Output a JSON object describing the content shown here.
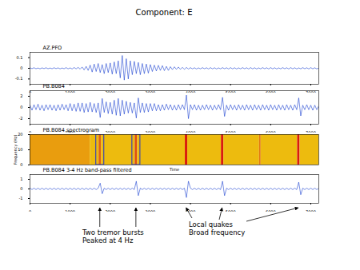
{
  "title": "Component: E",
  "chart_data": [
    {
      "type": "line",
      "title": "AZ.PFO",
      "color": "#1a3fd0",
      "xlim": [
        0,
        7200
      ],
      "xticks": [
        0,
        1000,
        2000,
        3000,
        4000,
        5000,
        6000,
        7000
      ],
      "ylim": [
        -0.15,
        0.15
      ],
      "yticks": [
        -0.1,
        0,
        0.1
      ],
      "x": [
        0,
        50,
        100,
        150,
        200,
        250,
        300,
        350,
        400,
        450,
        500,
        550,
        600,
        650,
        700,
        750,
        800,
        850,
        900,
        950,
        1000,
        1050,
        1100,
        1150,
        1200,
        1250,
        1300,
        1350,
        1400,
        1450,
        1500,
        1550,
        1600,
        1650,
        1700,
        1750,
        1800,
        1850,
        1900,
        1950,
        2000,
        2050,
        2100,
        2150,
        2200,
        2250,
        2300,
        2350,
        2400,
        2450,
        2500,
        2550,
        2600,
        2650,
        2700,
        2750,
        2800,
        2850,
        2900,
        2950,
        3000,
        3050,
        3100,
        3150,
        3200,
        3250,
        3300,
        3350,
        3400,
        3450,
        3500,
        3550,
        3600,
        3650,
        3700,
        3750,
        3800,
        3850,
        3900,
        3950,
        4000,
        4050,
        4100,
        4150,
        4200,
        4250,
        4300,
        4350,
        4400,
        4450,
        4500,
        4550,
        4600,
        4650,
        4700,
        4750,
        4800,
        4850,
        4900,
        4950,
        5000,
        5050,
        5100,
        5150,
        5200,
        5250,
        5300,
        5350,
        5400,
        5450,
        5500,
        5550,
        5600,
        5650,
        5700,
        5750,
        5800,
        5850,
        5900,
        5950,
        6000,
        6050,
        6100,
        6150,
        6200,
        6250,
        6300,
        6350,
        6400,
        6450,
        6500,
        6550,
        6600,
        6650,
        6700,
        6750,
        6800,
        6850,
        6900,
        6950,
        7000,
        7050,
        7100,
        7150,
        7200
      ],
      "values": [
        0.004,
        -0.003,
        0.005,
        -0.004,
        0.003,
        -0.005,
        0.004,
        -0.003,
        0.005,
        -0.004,
        0.003,
        -0.004,
        0.005,
        -0.003,
        0.004,
        -0.005,
        0.003,
        -0.004,
        0.006,
        -0.005,
        0.004,
        -0.006,
        0.007,
        -0.005,
        0.008,
        -0.007,
        0.012,
        -0.015,
        0.018,
        -0.02,
        0.03,
        -0.035,
        0.04,
        -0.03,
        0.045,
        -0.04,
        0.035,
        -0.05,
        0.045,
        -0.04,
        0.05,
        -0.055,
        0.06,
        -0.05,
        0.07,
        -0.09,
        0.12,
        -0.11,
        0.09,
        -0.1,
        0.07,
        -0.06,
        0.065,
        -0.05,
        0.055,
        -0.06,
        0.045,
        -0.05,
        0.04,
        -0.045,
        0.035,
        -0.03,
        0.03,
        -0.025,
        0.028,
        -0.02,
        0.025,
        -0.022,
        0.018,
        -0.02,
        0.015,
        -0.012,
        0.014,
        -0.01,
        0.012,
        -0.01,
        0.009,
        -0.01,
        0.008,
        -0.007,
        0.006,
        -0.005,
        0.005,
        -0.006,
        0.004,
        -0.005,
        0.006,
        -0.004,
        0.005,
        -0.006,
        0.006,
        -0.005,
        0.005,
        -0.006,
        0.004,
        -0.005,
        0.006,
        -0.004,
        0.005,
        -0.006,
        0.006,
        -0.005,
        0.005,
        -0.006,
        0.004,
        -0.005,
        0.006,
        -0.004,
        0.005,
        -0.006,
        0.006,
        -0.005,
        0.005,
        -0.006,
        0.004,
        -0.005,
        0.006,
        -0.004,
        0.005,
        -0.006,
        0.006,
        -0.005,
        0.005,
        -0.006,
        0.004,
        -0.005,
        0.006,
        -0.004,
        0.005,
        -0.006,
        0.006,
        -0.005,
        0.005,
        -0.006,
        0.004,
        -0.005,
        0.006,
        -0.004,
        0.005,
        -0.006,
        0.006,
        -0.005,
        0.005,
        -0.006,
        0.004
      ]
    },
    {
      "type": "line",
      "title": "PB.B084",
      "color": "#1a3fd0",
      "xlim": [
        0,
        7200
      ],
      "xticks": [
        0,
        1000,
        2000,
        3000,
        4000,
        5000,
        6000,
        7000
      ],
      "ylim": [
        -3,
        3
      ],
      "yticks": [
        -2,
        0,
        2
      ],
      "x": [
        0,
        50,
        100,
        150,
        200,
        250,
        300,
        350,
        400,
        450,
        500,
        550,
        600,
        650,
        700,
        750,
        800,
        850,
        900,
        950,
        1000,
        1050,
        1100,
        1150,
        1200,
        1250,
        1300,
        1350,
        1400,
        1450,
        1500,
        1550,
        1600,
        1650,
        1700,
        1750,
        1800,
        1850,
        1900,
        1950,
        2000,
        2050,
        2100,
        2150,
        2200,
        2250,
        2300,
        2350,
        2400,
        2450,
        2500,
        2550,
        2600,
        2650,
        2700,
        2750,
        2800,
        2850,
        2900,
        2950,
        3000,
        3050,
        3100,
        3150,
        3200,
        3250,
        3300,
        3350,
        3400,
        3450,
        3500,
        3550,
        3600,
        3650,
        3700,
        3750,
        3800,
        3850,
        3900,
        3950,
        4000,
        4050,
        4100,
        4150,
        4200,
        4250,
        4300,
        4350,
        4400,
        4450,
        4500,
        4550,
        4600,
        4650,
        4700,
        4750,
        4800,
        4850,
        4900,
        4950,
        5000,
        5050,
        5100,
        5150,
        5200,
        5250,
        5300,
        5350,
        5400,
        5450,
        5500,
        5550,
        5600,
        5650,
        5700,
        5750,
        5800,
        5850,
        5900,
        5950,
        6000,
        6050,
        6100,
        6150,
        6200,
        6250,
        6300,
        6350,
        6400,
        6450,
        6500,
        6550,
        6600,
        6650,
        6700,
        6750,
        6800,
        6850,
        6900,
        6950,
        7000,
        7050,
        7100,
        7150,
        7200
      ],
      "values": [
        0.4,
        -0.5,
        0.5,
        -0.4,
        0.6,
        -0.5,
        0.4,
        -0.6,
        0.5,
        -0.4,
        0.5,
        -0.5,
        0.4,
        -0.6,
        0.5,
        -0.5,
        0.6,
        -0.4,
        0.5,
        -0.6,
        0.7,
        -0.6,
        0.6,
        -0.7,
        0.8,
        -0.7,
        0.8,
        -0.9,
        0.7,
        -0.8,
        0.9,
        -0.8,
        0.7,
        -0.9,
        0.8,
        -1.8,
        1.6,
        -0.9,
        1.0,
        -1.1,
        0.9,
        -1.2,
        1.3,
        -1.4,
        1.6,
        -1.5,
        1.3,
        -1.2,
        1.1,
        -1.0,
        0.9,
        -1.0,
        0.8,
        -1.9,
        1.7,
        -0.9,
        0.8,
        -0.9,
        0.7,
        -0.8,
        0.7,
        -0.6,
        0.7,
        -0.6,
        0.5,
        -0.6,
        0.5,
        -0.5,
        0.6,
        -0.4,
        0.5,
        -0.5,
        0.4,
        -0.5,
        0.5,
        -0.4,
        0.5,
        -0.4,
        2.2,
        -2.0,
        0.5,
        -0.4,
        0.5,
        -0.5,
        0.4,
        -0.5,
        0.4,
        -0.4,
        0.5,
        -0.4,
        0.4,
        -0.5,
        0.4,
        -0.4,
        0.5,
        -0.4,
        1.8,
        -1.6,
        0.4,
        -0.5,
        0.5,
        -0.4,
        0.4,
        -0.5,
        0.5,
        -0.4,
        0.4,
        -0.5,
        0.5,
        -0.4,
        0.4,
        -0.5,
        0.5,
        -0.4,
        0.4,
        -0.5,
        0.5,
        -0.4,
        0.4,
        -0.5,
        0.5,
        -0.4,
        0.4,
        -0.5,
        0.5,
        -0.4,
        0.4,
        -0.5,
        0.5,
        -0.4,
        0.4,
        -0.5,
        0.5,
        -0.4,
        1.7,
        -1.5,
        0.4,
        -0.4,
        0.5,
        -0.4,
        0.4,
        -0.5,
        0.4,
        -0.4,
        0.3
      ]
    },
    {
      "type": "heatmap",
      "title": "PB.B084 spectrogram",
      "xlabel": "Time",
      "ylabel": "Frequency (Hz)",
      "tick_labels": "y",
      "xlim": [
        0,
        7200
      ],
      "ylim": [
        0,
        20
      ],
      "yticks": [
        0,
        10,
        20
      ],
      "bins": [
        0,
        1500,
        1720,
        1780,
        2620,
        2680,
        3870,
        3930,
        4770,
        4830,
        5720,
        5760,
        6670,
        6730,
        7200
      ],
      "values": [
        0.35,
        0.2,
        0.65,
        0.2,
        0.75,
        0.2,
        1,
        0.2,
        1,
        0.2,
        0.55,
        0.2,
        1,
        0.2
      ],
      "value_range": [
        0,
        1
      ],
      "boxes": [
        [
          1650,
          1850
        ],
        [
          2550,
          2750
        ]
      ]
    },
    {
      "type": "line",
      "title": "PB.B084 3-4 Hz band-pass filtered",
      "color": "#1a3fd0",
      "xlim": [
        0,
        7200
      ],
      "xticks": [
        0,
        1000,
        2000,
        3000,
        4000,
        5000,
        6000,
        7000
      ],
      "ylim": [
        -1.5,
        1.5
      ],
      "yticks": [
        -1,
        0,
        1
      ],
      "x": [
        0,
        50,
        100,
        150,
        200,
        250,
        300,
        350,
        400,
        450,
        500,
        550,
        600,
        650,
        700,
        750,
        800,
        850,
        900,
        950,
        1000,
        1050,
        1100,
        1150,
        1200,
        1250,
        1300,
        1350,
        1400,
        1450,
        1500,
        1550,
        1600,
        1650,
        1700,
        1750,
        1800,
        1850,
        1900,
        1950,
        2000,
        2050,
        2100,
        2150,
        2200,
        2250,
        2300,
        2350,
        2400,
        2450,
        2500,
        2550,
        2600,
        2650,
        2700,
        2750,
        2800,
        2850,
        2900,
        2950,
        3000,
        3050,
        3100,
        3150,
        3200,
        3250,
        3300,
        3350,
        3400,
        3450,
        3500,
        3550,
        3600,
        3650,
        3700,
        3750,
        3800,
        3850,
        3900,
        3950,
        4000,
        4050,
        4100,
        4150,
        4200,
        4250,
        4300,
        4350,
        4400,
        4450,
        4500,
        4550,
        4600,
        4650,
        4700,
        4750,
        4800,
        4850,
        4900,
        4950,
        5000,
        5050,
        5100,
        5150,
        5200,
        5250,
        5300,
        5350,
        5400,
        5450,
        5500,
        5550,
        5600,
        5650,
        5700,
        5750,
        5800,
        5850,
        5900,
        5950,
        6000,
        6050,
        6100,
        6150,
        6200,
        6250,
        6300,
        6350,
        6400,
        6450,
        6500,
        6550,
        6600,
        6650,
        6700,
        6750,
        6800,
        6850,
        6900,
        6950,
        7000,
        7050,
        7100,
        7150,
        7200
      ],
      "values": [
        0.08,
        -0.07,
        0.08,
        -0.07,
        0.08,
        -0.07,
        0.08,
        -0.07,
        0.08,
        -0.07,
        0.08,
        -0.07,
        0.08,
        -0.07,
        0.08,
        -0.07,
        0.08,
        -0.07,
        0.08,
        -0.07,
        0.08,
        -0.07,
        0.08,
        -0.07,
        0.08,
        -0.07,
        0.08,
        -0.07,
        0.08,
        -0.07,
        0.08,
        -0.07,
        0.08,
        -0.07,
        0.08,
        0.6,
        -0.5,
        0.08,
        -0.07,
        0.08,
        -0.07,
        0.08,
        -0.07,
        0.08,
        -0.07,
        0.08,
        -0.07,
        0.08,
        -0.07,
        0.08,
        -0.07,
        0.08,
        -0.07,
        0.8,
        -0.7,
        0.08,
        -0.07,
        0.08,
        -0.07,
        0.08,
        -0.07,
        0.08,
        -0.07,
        0.08,
        -0.07,
        0.08,
        -0.07,
        0.08,
        -0.07,
        0.08,
        -0.07,
        0.08,
        -0.07,
        0.08,
        -0.07,
        0.08,
        -0.07,
        0.08,
        -0.9,
        0.8,
        0.08,
        -0.07,
        0.08,
        -0.07,
        0.08,
        -0.07,
        0.08,
        -0.07,
        0.08,
        -0.07,
        0.08,
        -0.07,
        0.08,
        -0.07,
        0.08,
        -0.07,
        0.8,
        -0.7,
        0.08,
        -0.07,
        0.08,
        -0.07,
        0.08,
        -0.07,
        0.08,
        -0.07,
        0.08,
        -0.07,
        0.08,
        -0.07,
        0.08,
        -0.07,
        0.08,
        -0.07,
        0.08,
        -0.07,
        0.08,
        -0.07,
        0.08,
        -0.07,
        0.08,
        -0.07,
        0.08,
        -0.07,
        0.08,
        -0.07,
        0.08,
        -0.07,
        0.08,
        -0.07,
        0.08,
        -0.07,
        0.08,
        -0.07,
        0.7,
        -0.6,
        0.08,
        -0.07,
        0.08,
        -0.07,
        0.08,
        -0.07,
        0.08,
        -0.07,
        0.08
      ],
      "annotations": [
        {
          "text": [
            "Two tremor bursts",
            "Peaked at 4 Hz"
          ],
          "x": [
            1750,
            2650
          ]
        },
        {
          "text": [
            "Local quakes",
            "Broad frequency"
          ],
          "x": [
            3900,
            4800,
            6700
          ]
        }
      ]
    }
  ]
}
